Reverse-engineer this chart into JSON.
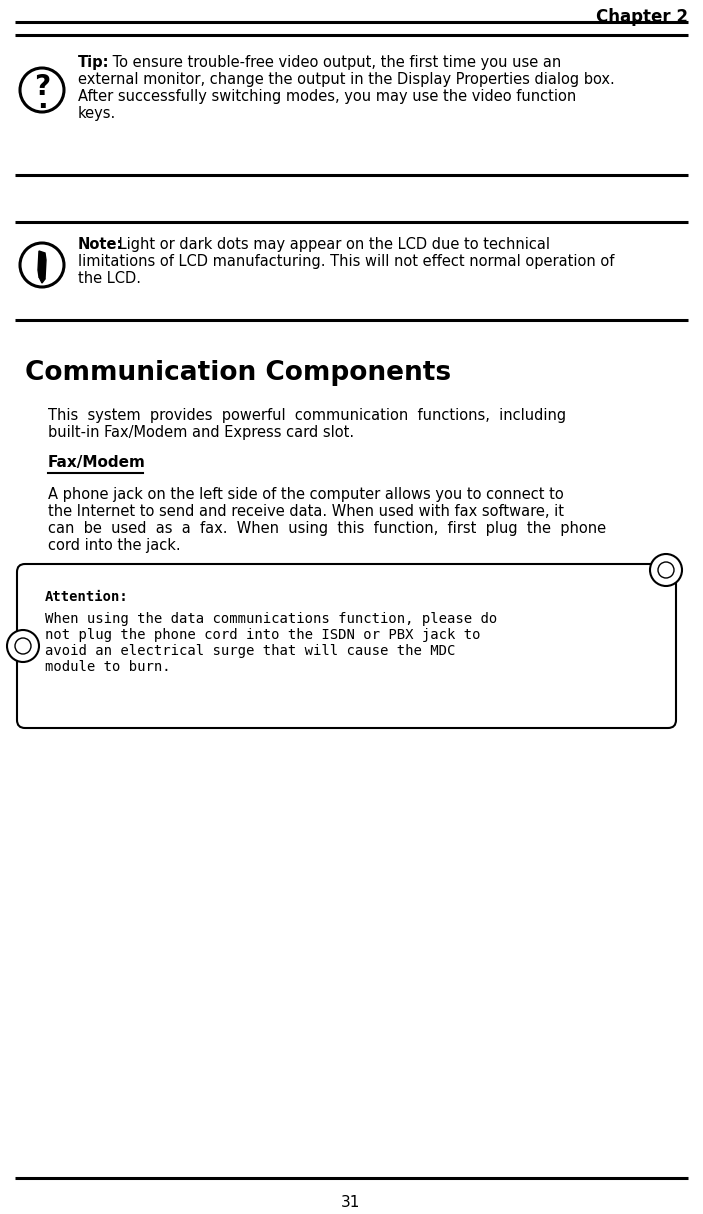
{
  "bg_color": "#ffffff",
  "header_text": "Chapter 2",
  "page_number": "31",
  "tip_bold": "Tip:",
  "tip_line1": " To ensure trouble-free video output, the first time you use an",
  "tip_line2": "external monitor, change the output in the Display Properties dialog box.",
  "tip_line3": "After successfully switching modes, you may use the video function",
  "tip_line4": "keys.",
  "note_bold": "Note:",
  "note_line1": " Light or dark dots may appear on the LCD due to technical",
  "note_line2": "limitations of LCD manufacturing. This will not effect normal operation of",
  "note_line3": "the LCD.",
  "section_title": "Communication Components",
  "body_line1": "This  system  provides  powerful  communication  functions,  including",
  "body_line2": "built-in Fax/Modem and Express card slot.",
  "subsection_title": "Fax/Modem",
  "fax_line1": "A phone jack on the left side of the computer allows you to connect to",
  "fax_line2": "the Internet to send and receive data. When used with fax software, it",
  "fax_line3": "can  be  used  as  a  fax.  When  using  this  function,  first  plug  the  phone",
  "fax_line4": "cord into the jack.",
  "attention_title": "Attention:",
  "att_line1": "When using the data communications function, please do",
  "att_line2": "not plug the phone cord into the ISDN or PBX jack to",
  "att_line3": "avoid an electrical surge that will cause the MDC",
  "att_line4": "module to burn.",
  "font_color": "#000000",
  "line_color": "#000000"
}
